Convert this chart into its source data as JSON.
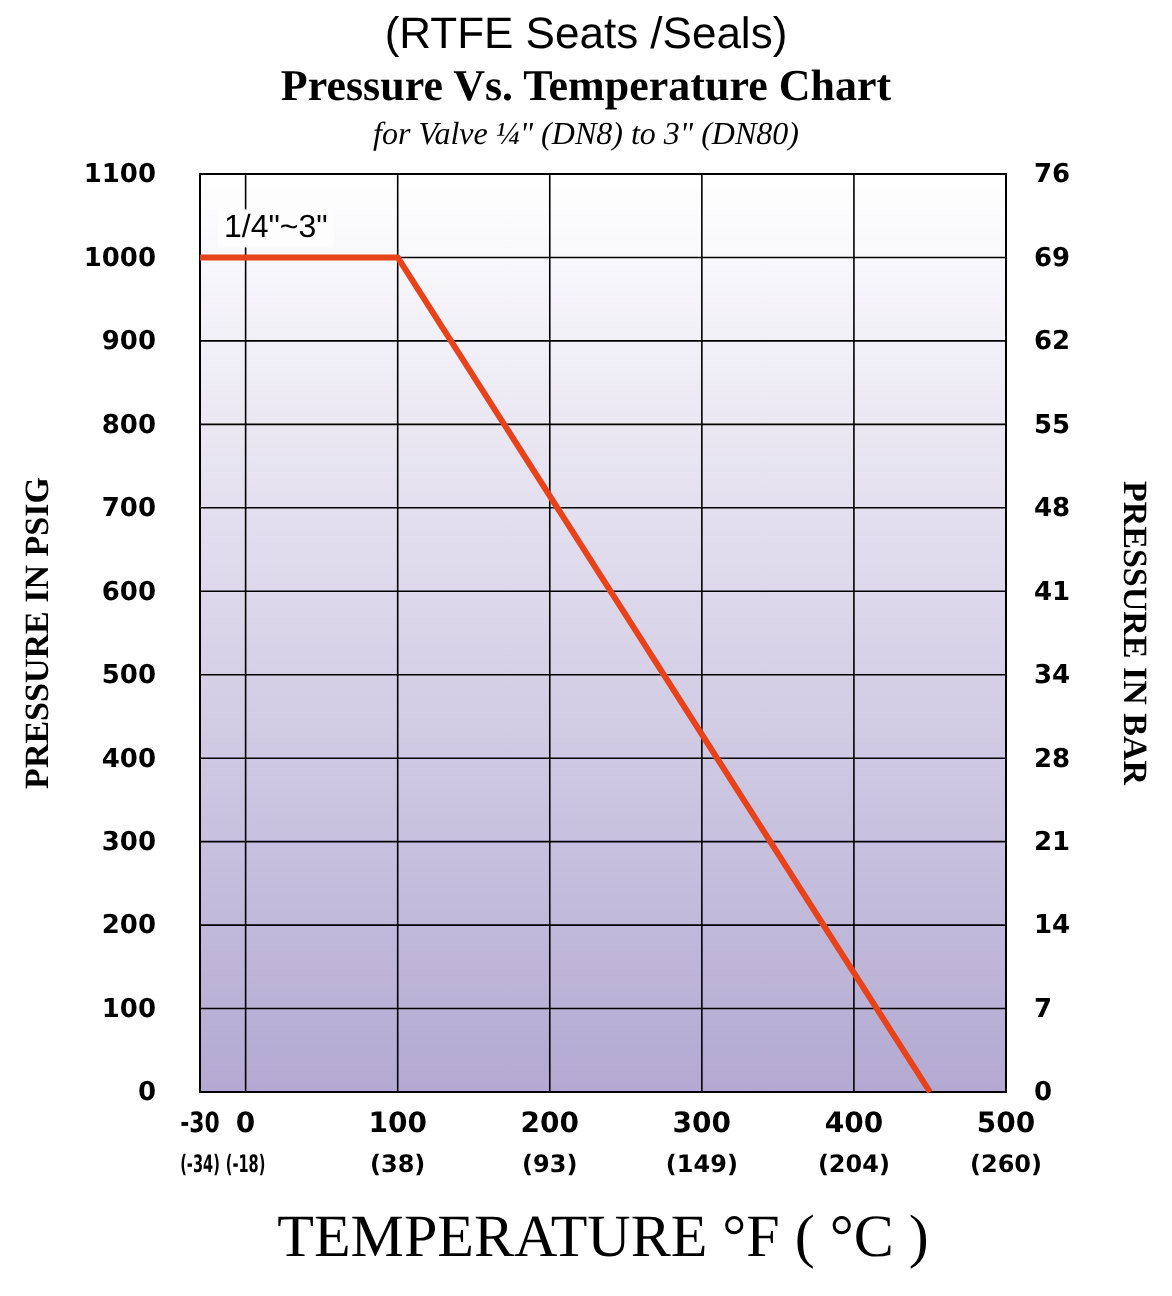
{
  "chart_data": {
    "type": "line",
    "title": "Pressure Vs. Temperature Chart",
    "subtitle": "(RTFE Seats /Seals)",
    "annotations": [
      "for Valve ¼\" (DN8) to 3\" (DN80)"
    ],
    "xlabel": "TEMPERATURE °F ( °C )",
    "ylabel": "PRESSURE IN PSIG",
    "y2label": "PRESSURE IN BAR",
    "series": [
      {
        "name": "1/4\"~3\"",
        "color": "#e8421a",
        "x": [
          -30,
          100,
          450
        ],
        "values": [
          1000,
          1000,
          0
        ]
      }
    ],
    "xlim": [
      -30,
      500
    ],
    "xticks": [
      -30,
      0,
      100,
      200,
      300,
      400,
      500
    ],
    "x2lim": [
      -34.44,
      260
    ],
    "x2ticks": [
      {
        "value": -34.44,
        "label": "(-34)"
      },
      {
        "value": -17.78,
        "label": "(-18)"
      },
      {
        "value": 37.78,
        "label": "(38)"
      },
      {
        "value": 93.33,
        "label": "(93)"
      },
      {
        "value": 148.89,
        "label": "(149)"
      },
      {
        "value": 204.44,
        "label": "(204)"
      },
      {
        "value": 260,
        "label": "(260)"
      }
    ],
    "ylim": [
      0,
      1100
    ],
    "yticks": [
      0,
      100,
      200,
      300,
      400,
      500,
      600,
      700,
      800,
      900,
      1000,
      1100
    ],
    "y2lim": [
      0,
      75.84
    ],
    "y2ticks": [
      0,
      {
        "value": 6.89,
        "label": "7"
      },
      {
        "value": 13.79,
        "label": "14"
      },
      {
        "value": 20.68,
        "label": "21"
      },
      {
        "value": 27.58,
        "label": "28"
      },
      {
        "value": 34.47,
        "label": "34"
      },
      {
        "value": 41.37,
        "label": "41"
      },
      {
        "value": 48.26,
        "label": "48"
      },
      {
        "value": 55.16,
        "label": "55"
      },
      {
        "value": 62.05,
        "label": "62"
      },
      {
        "value": 68.95,
        "label": "69"
      },
      {
        "value": 75.84,
        "label": "76"
      }
    ],
    "grid": true,
    "legend": false,
    "marker": "none",
    "line_style": "solid"
  }
}
